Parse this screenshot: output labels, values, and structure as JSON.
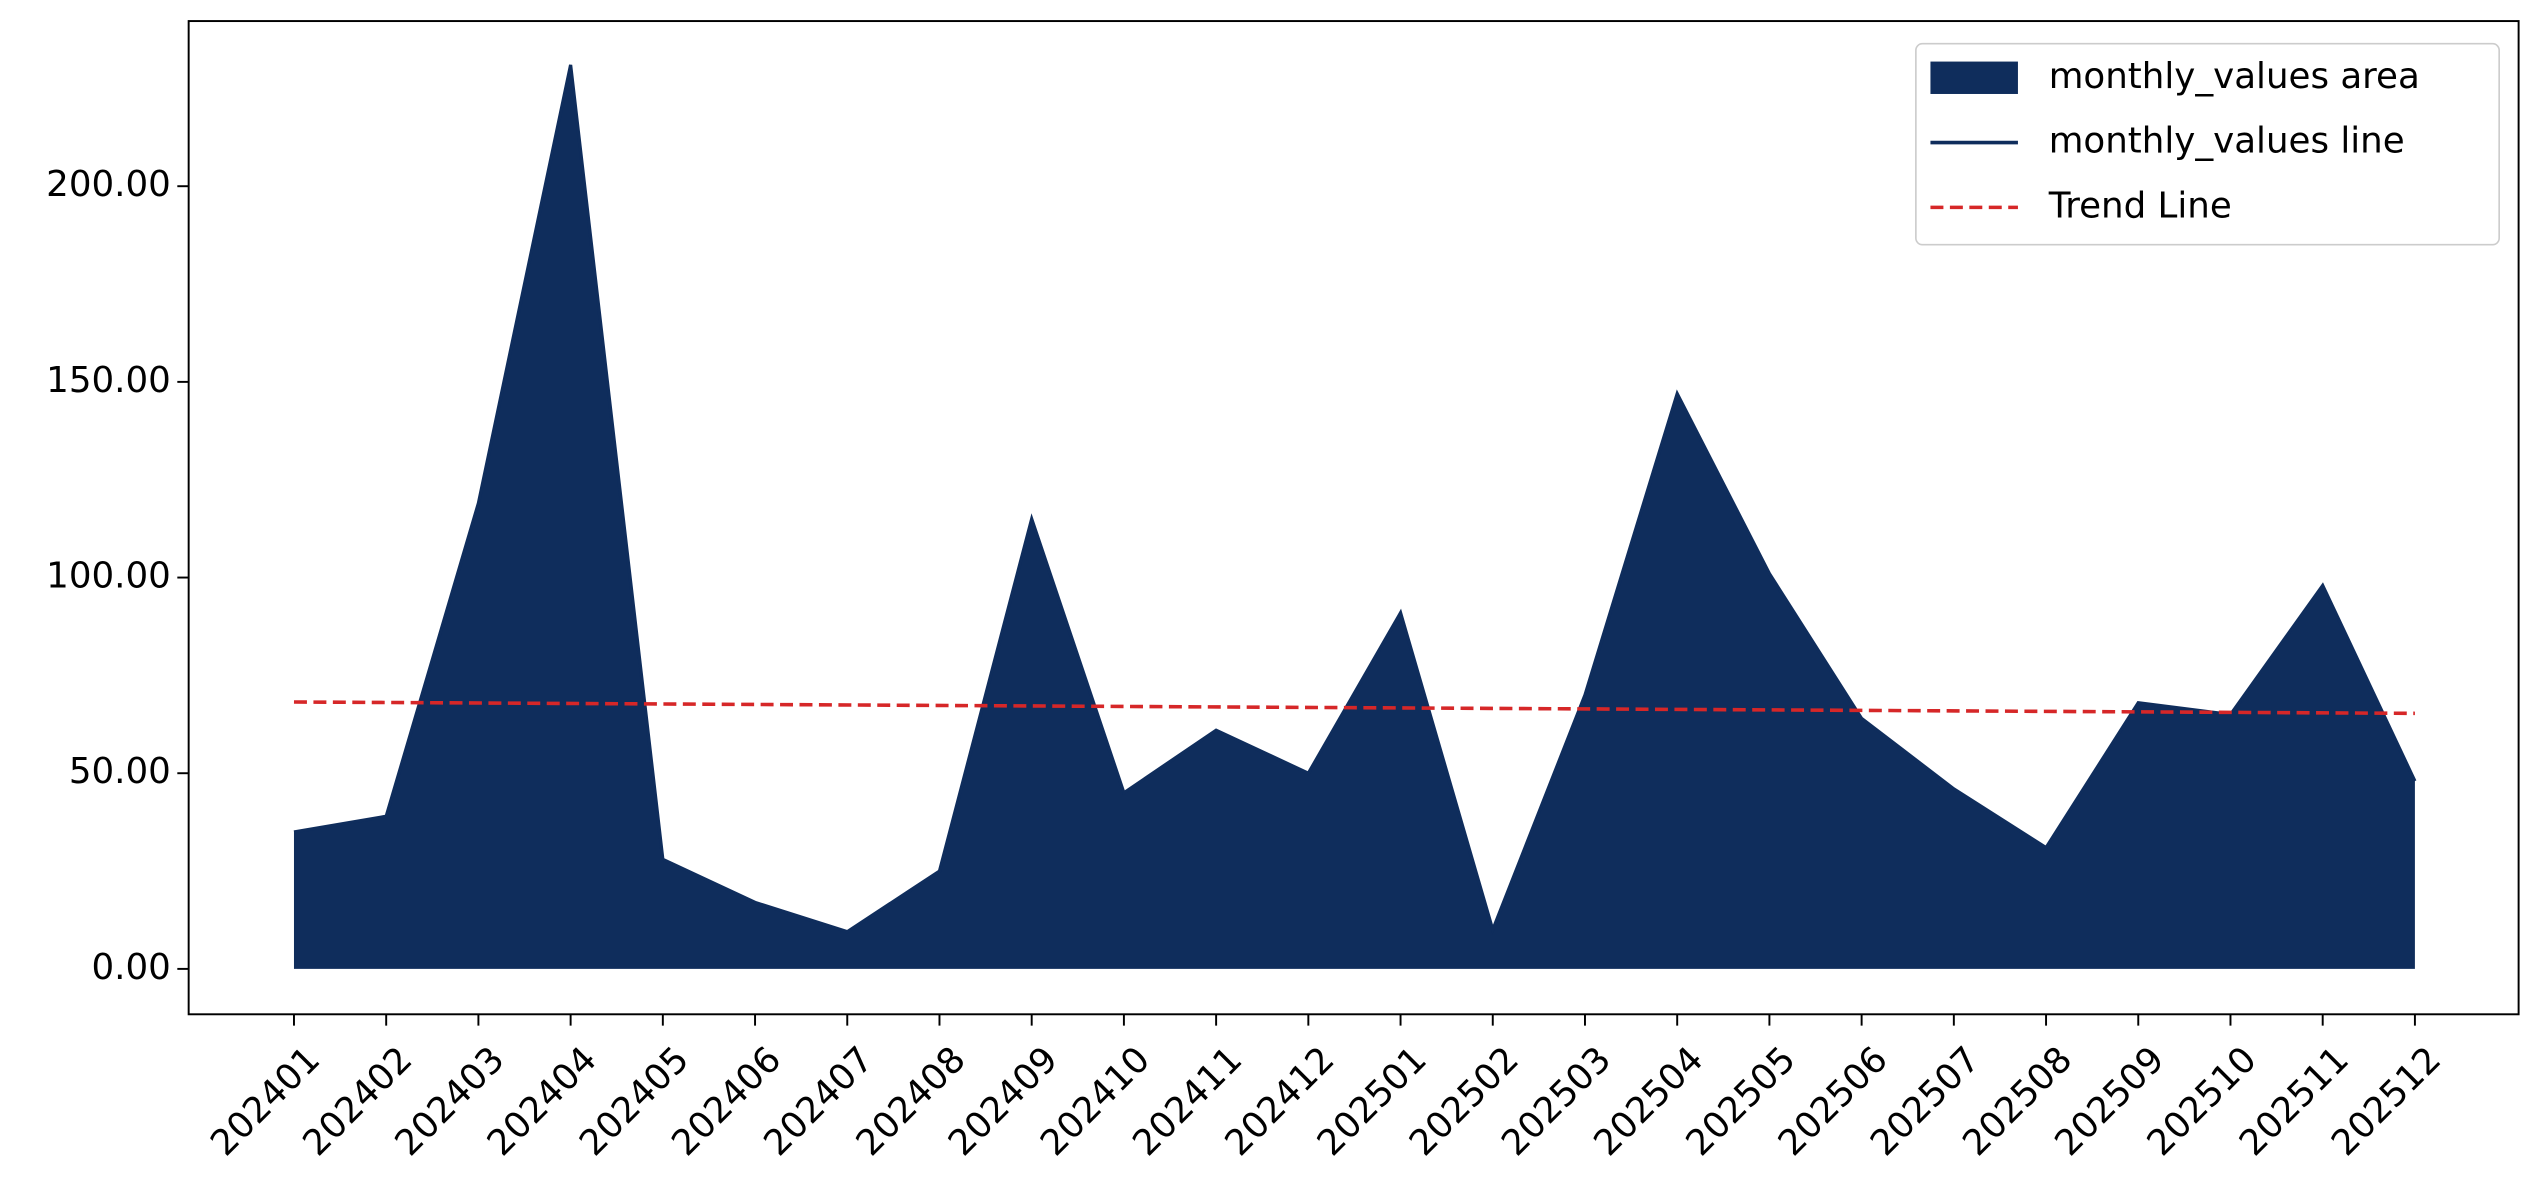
{
  "chart_data": {
    "type": "area",
    "categories": [
      "202401",
      "202402",
      "202403",
      "202404",
      "202405",
      "202406",
      "202407",
      "202408",
      "202409",
      "202410",
      "202411",
      "202412",
      "202501",
      "202502",
      "202503",
      "202504",
      "202505",
      "202506",
      "202507",
      "202508",
      "202509",
      "202510",
      "202511",
      "202512"
    ],
    "series": [
      {
        "name": "monthly_values area",
        "color": "#0f2d5c",
        "values": [
          35,
          39,
          119,
          231,
          28,
          17,
          9.5,
          25,
          115,
          45,
          61,
          50,
          91,
          10,
          70,
          147,
          101,
          64,
          46,
          31,
          68,
          65,
          98,
          48
        ]
      },
      {
        "name": "monthly_values line",
        "color": "#0f2d5c",
        "values": [
          35,
          39,
          119,
          231,
          28,
          17,
          9.5,
          25,
          115,
          45,
          61,
          50,
          91,
          10,
          70,
          147,
          101,
          64,
          46,
          31,
          68,
          65,
          98,
          48
        ]
      }
    ],
    "trend": {
      "name": "Trend Line",
      "color": "#d62728",
      "x": [
        "202401",
        "202512"
      ],
      "values": [
        68.2,
        65.3
      ]
    },
    "ylim": [
      -11.6,
      242.2
    ],
    "yticks": [
      {
        "value": 0,
        "label": "0.00"
      },
      {
        "value": 50,
        "label": "50.00"
      },
      {
        "value": 100,
        "label": "100.00"
      },
      {
        "value": 150,
        "label": "150.00"
      },
      {
        "value": 200,
        "label": "200.00"
      }
    ],
    "legend": "upper right"
  }
}
